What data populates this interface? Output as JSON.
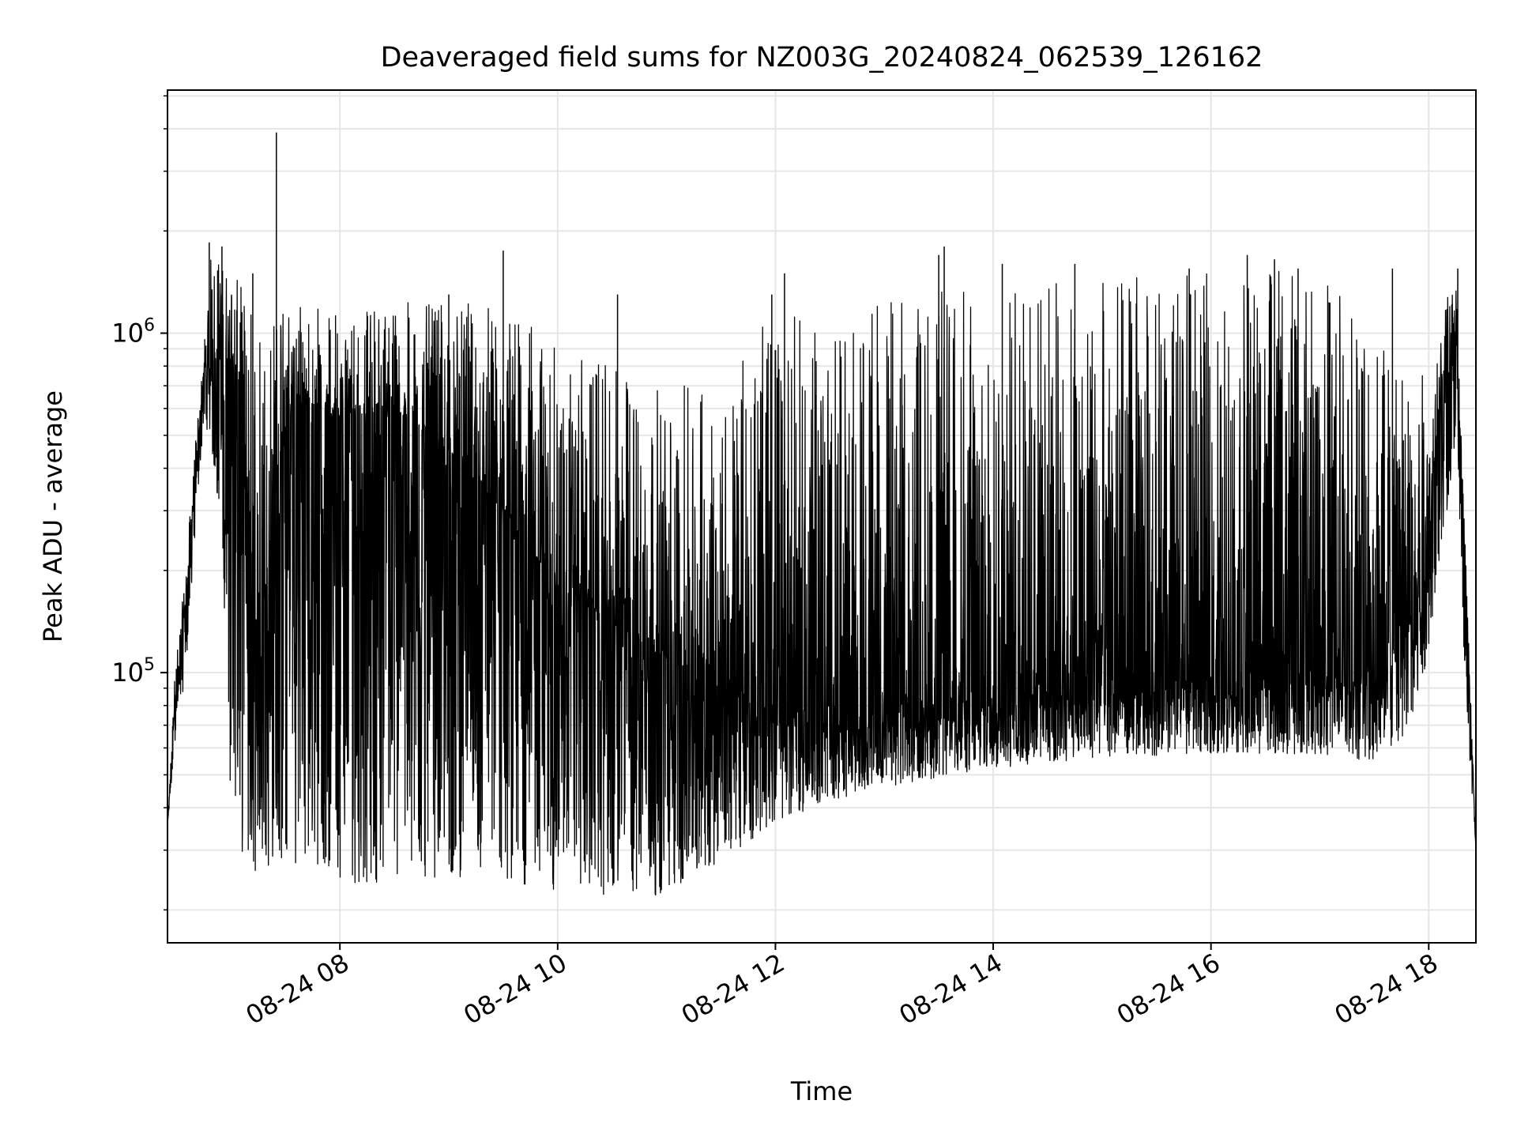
{
  "chart_data": {
    "type": "line",
    "title": "Deaveraged field sums for NZ003G_20240824_062539_126162",
    "xlabel": "Time",
    "ylabel": "Peak ADU - average",
    "yscale": "log",
    "x_type": "datetime",
    "xlim": [
      "2024-08-24 06:25",
      "2024-08-24 18:26"
    ],
    "ylim": [
      16000,
      5200000
    ],
    "x_ticks": [
      {
        "value": "2024-08-24 08:00",
        "label": "08-24 08"
      },
      {
        "value": "2024-08-24 10:00",
        "label": "08-24 10"
      },
      {
        "value": "2024-08-24 12:00",
        "label": "08-24 12"
      },
      {
        "value": "2024-08-24 14:00",
        "label": "08-24 14"
      },
      {
        "value": "2024-08-24 16:00",
        "label": "08-24 16"
      },
      {
        "value": "2024-08-24 18:00",
        "label": "08-24 18"
      }
    ],
    "y_ticks": [
      {
        "value": 100000,
        "base": "10",
        "exp": "5"
      },
      {
        "value": 1000000,
        "base": "10",
        "exp": "6"
      }
    ],
    "y_minor_ticks": [
      20000,
      30000,
      40000,
      50000,
      60000,
      70000,
      80000,
      90000,
      200000,
      300000,
      400000,
      500000,
      600000,
      700000,
      800000,
      900000,
      2000000,
      3000000,
      4000000,
      5000000
    ],
    "grid": true,
    "line_color": "#000000",
    "grid_color": "#e6e6e6",
    "series": [
      {
        "x": [
          "2024-08-24 06:25",
          "2024-08-24 06:29",
          "2024-08-24 06:35",
          "2024-08-24 06:40",
          "2024-08-24 06:45",
          "2024-08-24 06:48",
          "2024-08-24 06:55",
          "2024-08-24 07:00",
          "2024-08-24 07:05",
          "2024-08-24 07:10",
          "2024-08-24 07:15",
          "2024-08-24 07:30",
          "2024-08-24 07:45",
          "2024-08-24 08:00",
          "2024-08-24 08:30",
          "2024-08-24 09:00",
          "2024-08-24 09:30",
          "2024-08-24 10:00",
          "2024-08-24 10:30",
          "2024-08-24 11:00",
          "2024-08-24 11:30",
          "2024-08-24 12:00",
          "2024-08-24 12:30",
          "2024-08-24 13:00",
          "2024-08-24 14:00",
          "2024-08-24 15:00",
          "2024-08-24 16:00",
          "2024-08-24 17:00",
          "2024-08-24 17:30",
          "2024-08-24 17:50",
          "2024-08-24 18:00",
          "2024-08-24 18:10",
          "2024-08-24 18:15",
          "2024-08-24 18:20",
          "2024-08-24 18:26"
        ],
        "y": [
          35000,
          80000,
          160000,
          350000,
          750000,
          780000,
          850000,
          800000,
          700000,
          260000,
          110000,
          600000,
          620000,
          560000,
          600000,
          450000,
          300000,
          180000,
          140000,
          110000,
          90000,
          70000,
          66000,
          70000,
          76000,
          82000,
          88000,
          90000,
          92000,
          140000,
          300000,
          900000,
          1000000,
          200000,
          30000
        ],
        "y_range_low": [
          35000,
          60000,
          100000,
          250000,
          550000,
          500000,
          250000,
          40000,
          30000,
          28000,
          25000,
          27000,
          28000,
          24000,
          24000,
          25000,
          25000,
          22000,
          22000,
          22000,
          28000,
          36000,
          42000,
          46000,
          52000,
          56000,
          58000,
          57000,
          55000,
          60000,
          120000,
          300000,
          500000,
          90000,
          30000
        ],
        "y_range_high": [
          35000,
          100000,
          200000,
          450000,
          900000,
          1700000,
          1700000,
          1550000,
          1400000,
          1300000,
          1350000,
          1300000,
          1250000,
          1200000,
          1250000,
          1200000,
          1300000,
          900000,
          800000,
          700000,
          700000,
          1200000,
          1000000,
          1300000,
          1400000,
          1500000,
          1500000,
          1550000,
          1400000,
          1200000,
          600000,
          1300000,
          1500000,
          250000,
          30000
        ],
        "spikes": [
          {
            "x": "2024-08-24 06:48",
            "y": 1850000
          },
          {
            "x": "2024-08-24 06:55",
            "y": 1800000
          },
          {
            "x": "2024-08-24 07:12",
            "y": 1500000
          },
          {
            "x": "2024-08-24 07:25",
            "y": 3900000
          },
          {
            "x": "2024-08-24 09:00",
            "y": 1300000
          },
          {
            "x": "2024-08-24 09:30",
            "y": 1750000
          },
          {
            "x": "2024-08-24 10:33",
            "y": 1300000
          },
          {
            "x": "2024-08-24 11:58",
            "y": 1300000
          },
          {
            "x": "2024-08-24 12:05",
            "y": 1500000
          },
          {
            "x": "2024-08-24 13:33",
            "y": 1800000
          },
          {
            "x": "2024-08-24 13:30",
            "y": 1700000
          },
          {
            "x": "2024-08-24 14:05",
            "y": 1600000
          },
          {
            "x": "2024-08-24 14:45",
            "y": 1600000
          },
          {
            "x": "2024-08-24 15:48",
            "y": 1550000
          },
          {
            "x": "2024-08-24 16:20",
            "y": 1700000
          },
          {
            "x": "2024-08-24 16:35",
            "y": 1650000
          },
          {
            "x": "2024-08-24 16:48",
            "y": 1550000
          },
          {
            "x": "2024-08-24 17:40",
            "y": 1550000
          },
          {
            "x": "2024-08-24 18:16",
            "y": 1550000
          }
        ]
      }
    ]
  }
}
